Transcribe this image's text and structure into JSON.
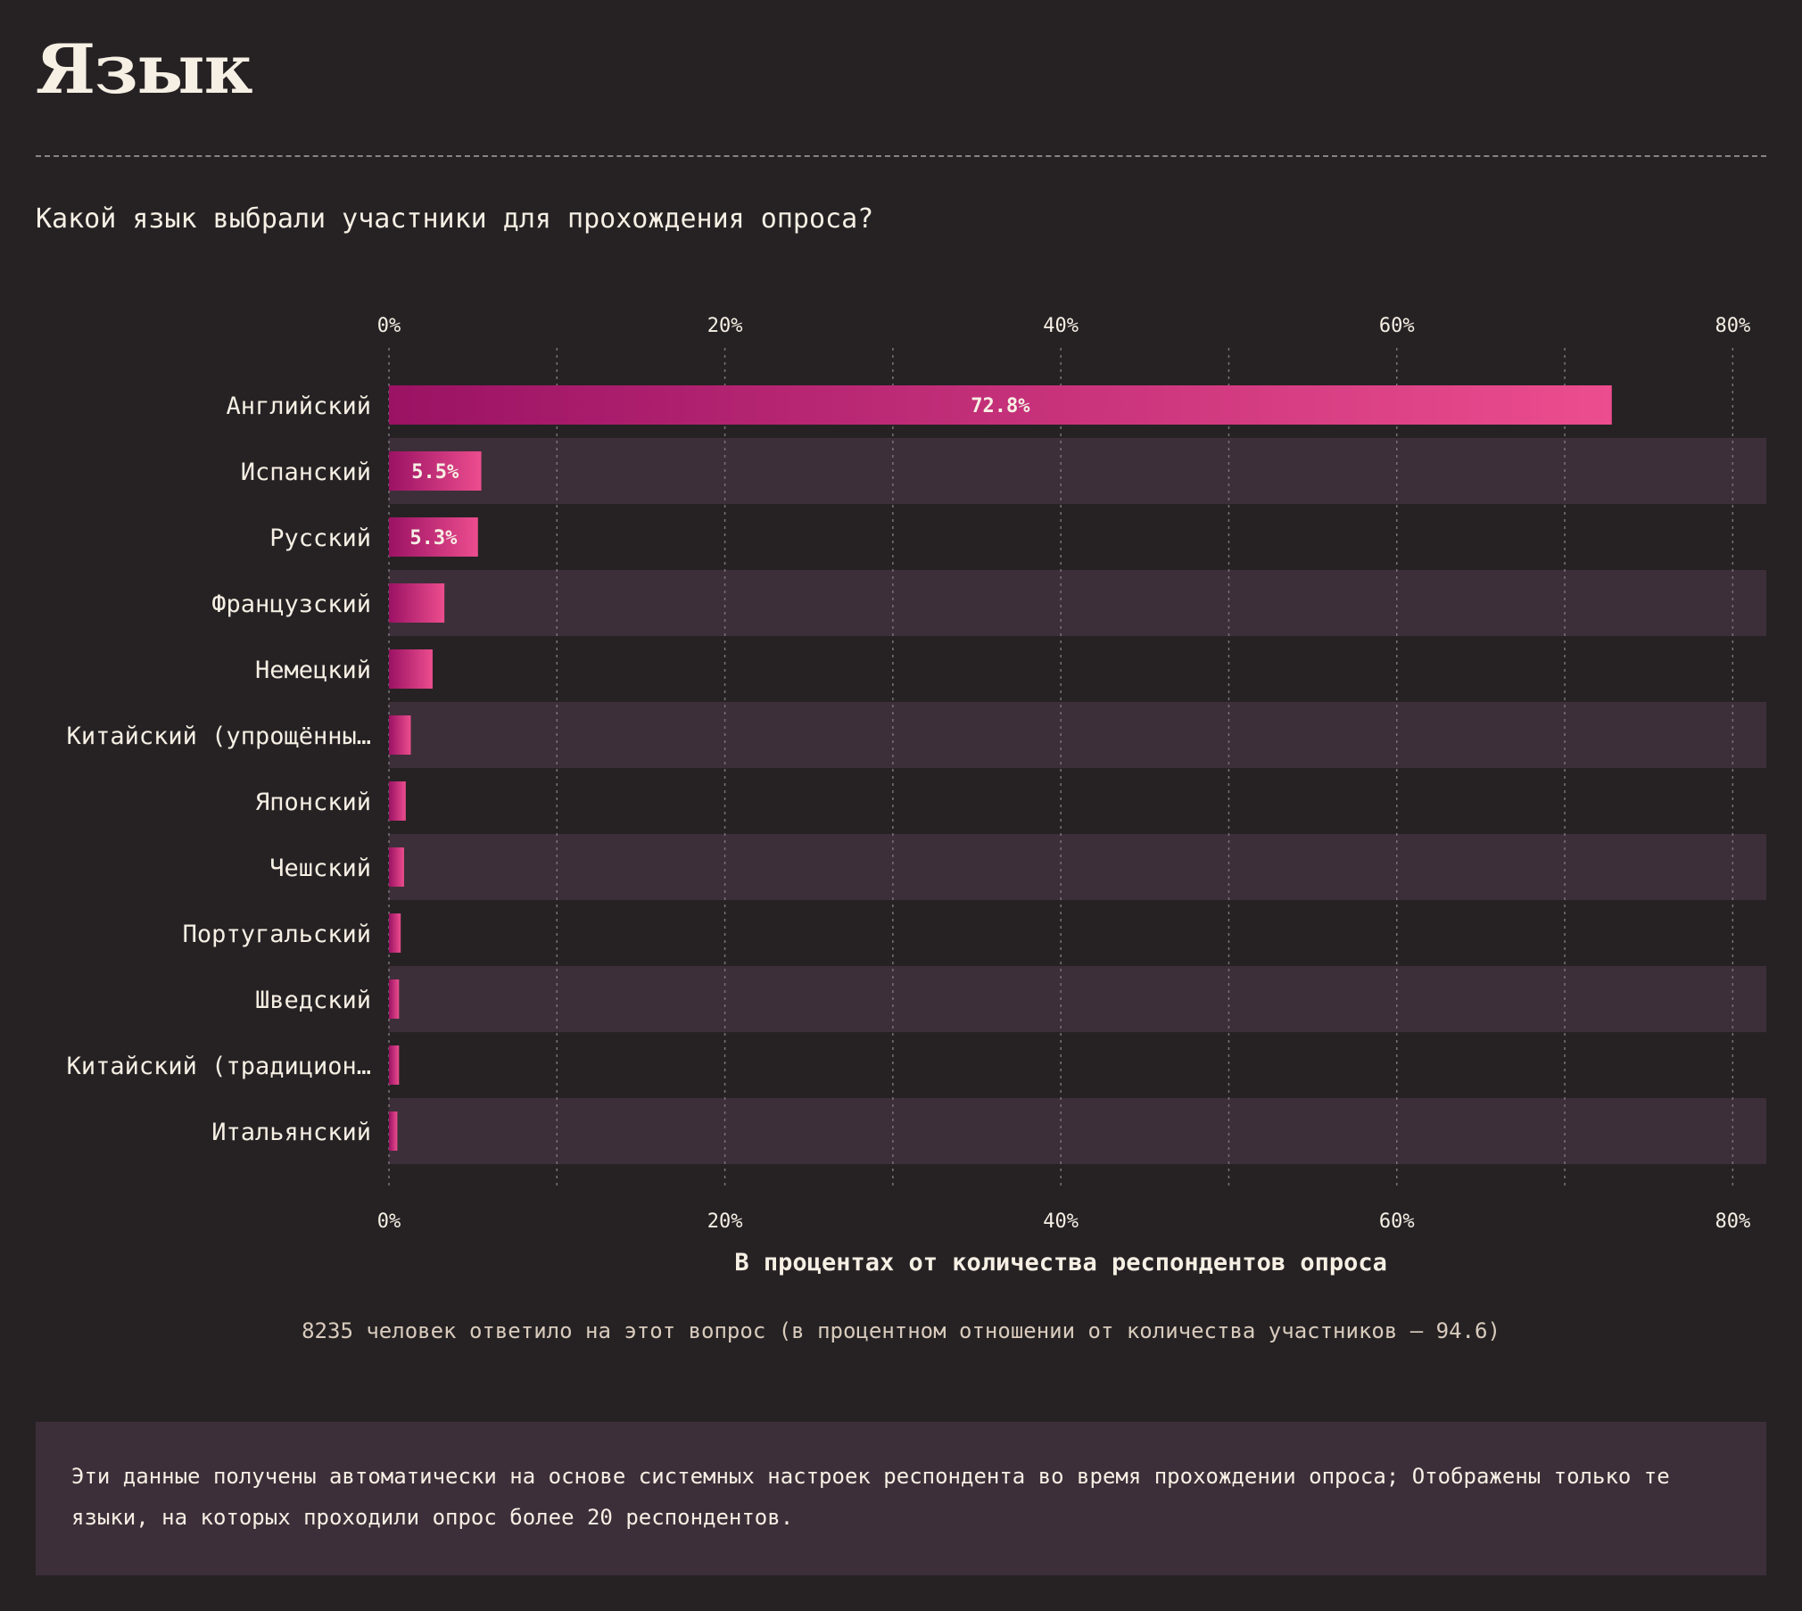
{
  "header": {
    "title": "Язык",
    "question": "Какой язык выбрали участники для прохождения опроса?"
  },
  "chart_data": {
    "type": "bar",
    "orientation": "horizontal",
    "categories": [
      "Английский",
      "Испанский",
      "Русский",
      "Французский",
      "Немецкий",
      "Китайский (упрощённы…",
      "Японский",
      "Чешский",
      "Португальский",
      "Шведский",
      "Китайский (традицион…",
      "Итальянский"
    ],
    "values": [
      72.8,
      5.5,
      5.3,
      3.3,
      2.6,
      1.3,
      1.0,
      0.9,
      0.7,
      0.6,
      0.6,
      0.5
    ],
    "value_labels": [
      "72.8%",
      "5.5%",
      "5.3%",
      "",
      "",
      "",
      "",
      "",
      "",
      "",
      "",
      ""
    ],
    "xlim": [
      0,
      82
    ],
    "ticks": [
      0,
      20,
      40,
      60,
      80
    ],
    "tick_labels": [
      "0%",
      "20%",
      "40%",
      "60%",
      "80%"
    ],
    "minor_gridlines": [
      10,
      30,
      50,
      70
    ],
    "xlabel": "В процентах от количества респондентов опроса",
    "ylabel": "",
    "grid": true,
    "colors": {
      "bar_start": "#9b1264",
      "bar_end": "#ec4d8e",
      "row_band": "#3d2f39",
      "gridline": "#7a7276",
      "text": "#f6efe4"
    }
  },
  "footer": {
    "respondents": "8235 человек ответило на этот вопрос (в процентном отношении от количества участников — 94.6)",
    "note": "Эти данные получены автоматически на основе системных настроек респондента во время прохождении опроса; Отображены только те языки, на которых проходили опрос более 20 респондентов."
  }
}
